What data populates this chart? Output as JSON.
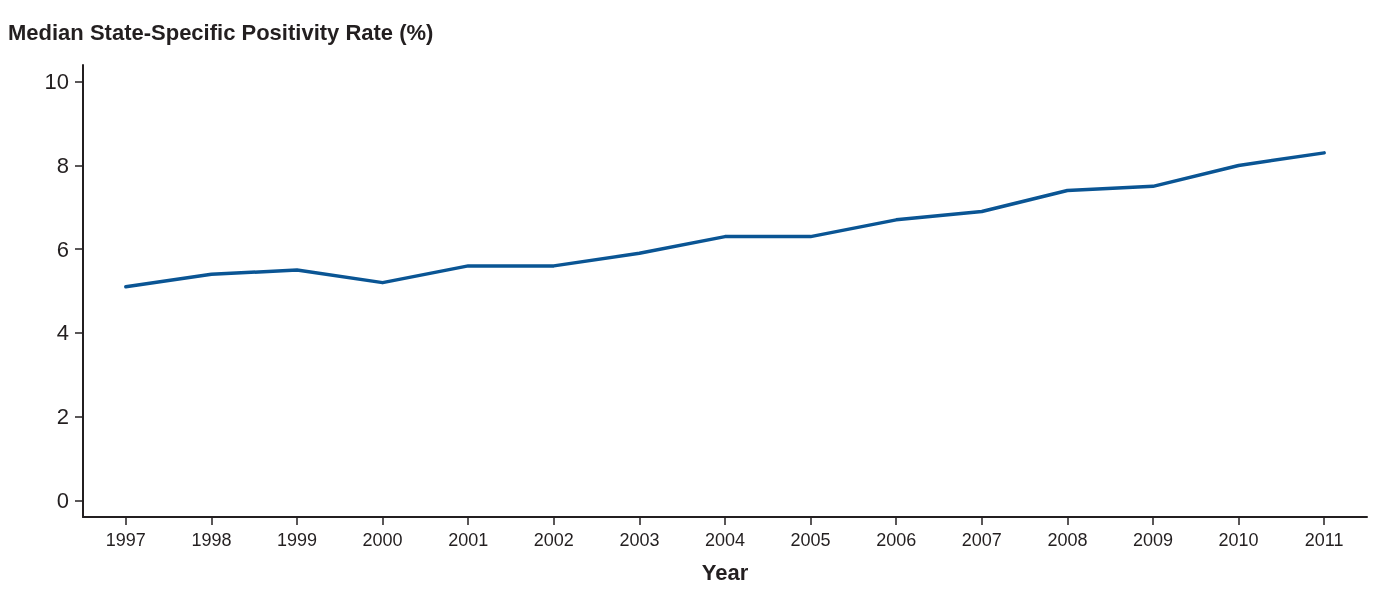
{
  "chart_data": {
    "type": "line",
    "ylabel": "Median State-Specific Positivity Rate (%)",
    "xlabel": "Year",
    "categories": [
      "1997",
      "1998",
      "1999",
      "2000",
      "2001",
      "2002",
      "2003",
      "2004",
      "2005",
      "2006",
      "2007",
      "2008",
      "2009",
      "2010",
      "2011"
    ],
    "series": [
      {
        "color": "#0a5594",
        "values": [
          5.1,
          5.4,
          5.5,
          5.2,
          5.6,
          5.6,
          5.9,
          6.3,
          6.3,
          6.7,
          6.9,
          7.4,
          7.5,
          8.0,
          8.3
        ]
      }
    ],
    "ylim": [
      -0.4,
      10.4
    ],
    "yticks": [
      0,
      2,
      4,
      6,
      8,
      10
    ],
    "grid": false,
    "marker": "none",
    "line_style": "solid"
  }
}
